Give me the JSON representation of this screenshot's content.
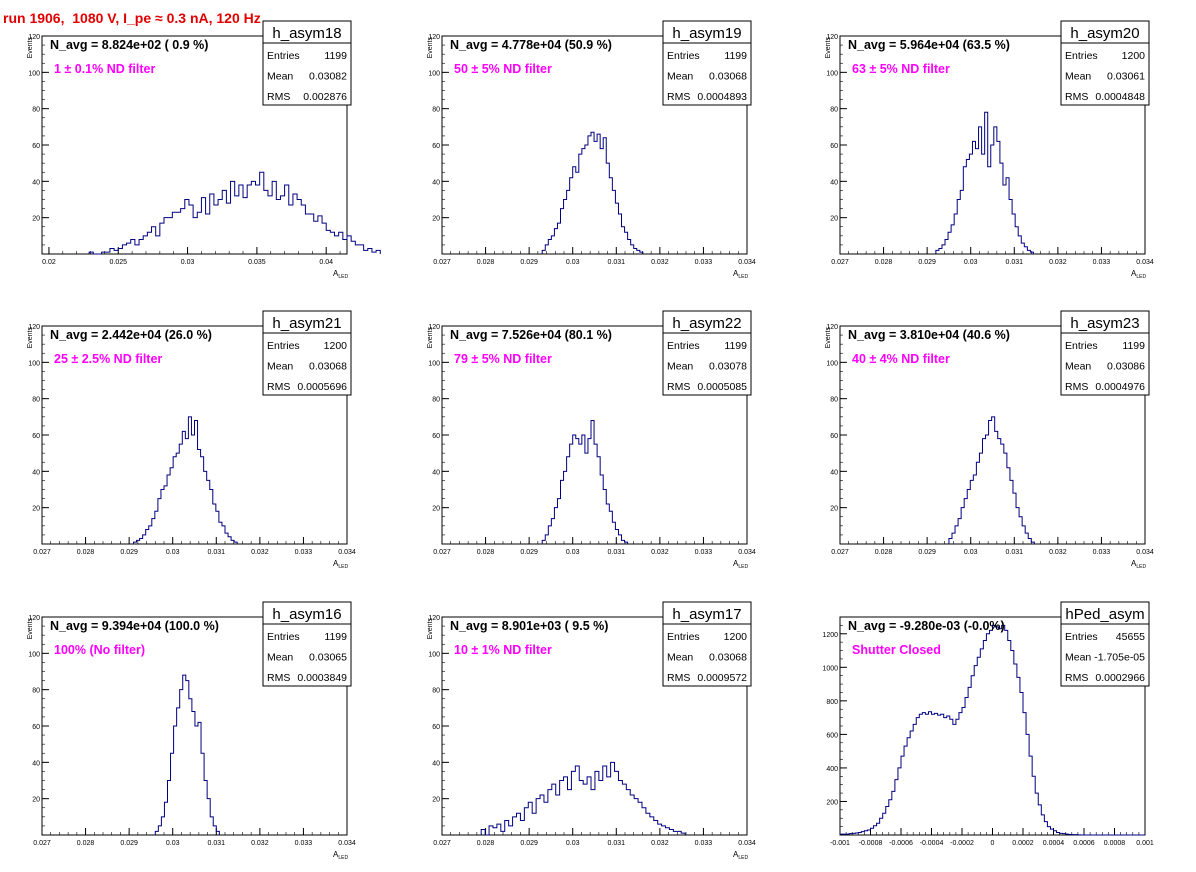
{
  "run_title": "run 1906,  1080 V, I_pe ≈ 0.3 nA, 120 Hz",
  "colors": {
    "title": "#e00000",
    "filter_note": "#ff00ff",
    "histogram_line": "#000080",
    "text": "#000000"
  },
  "stat_labels": {
    "entries": "Entries",
    "mean": "Mean",
    "rms": "RMS"
  },
  "chart_data": [
    {
      "type": "histogram",
      "name": "h_asym18",
      "navg": "N_avg = 8.824e+02 ( 0.9 %)",
      "filter": "1 ± 0.1% ND filter",
      "entries": "1199",
      "mean": "0.03082",
      "rms": "0.002876",
      "ylabel": "Events",
      "xlabel": "A",
      "xlabel_sub": "LED",
      "xlim": [
        0.0195,
        0.0415
      ],
      "ylim": [
        0,
        120
      ],
      "xticks": [
        0.02,
        0.025,
        0.03,
        0.035,
        0.04
      ],
      "xtick_labels": [
        "0.02",
        "0.025",
        "0.03",
        "0.035",
        "0.04"
      ],
      "yticks": [
        20,
        40,
        60,
        80,
        100,
        120
      ],
      "bin_start": 0.0229,
      "bin_width": 0.0003,
      "counts": [
        1,
        0,
        0,
        1,
        1,
        3,
        2,
        3,
        5,
        6,
        8,
        5,
        8,
        10,
        12,
        15,
        10,
        17,
        20,
        20,
        23,
        23,
        25,
        30,
        27,
        20,
        23,
        31,
        22,
        33,
        27,
        30,
        35,
        28,
        40,
        32,
        38,
        31,
        38,
        40,
        38,
        45,
        35,
        32,
        40,
        30,
        32,
        38,
        27,
        33,
        30,
        27,
        22,
        22,
        18,
        21,
        17,
        13,
        12,
        10,
        12,
        8,
        10,
        7,
        5,
        5,
        2,
        3,
        1,
        2
      ]
    },
    {
      "type": "histogram",
      "name": "h_asym19",
      "navg": "N_avg = 4.778e+04 (50.9 %)",
      "filter": "50 ± 5% ND filter",
      "entries": "1199",
      "mean": "0.03068",
      "rms": "0.0004893",
      "ylabel": "Events",
      "xlabel": "A",
      "xlabel_sub": "LED",
      "xlim": [
        0.027,
        0.034
      ],
      "ylim": [
        0,
        120
      ],
      "xticks": [
        0.027,
        0.028,
        0.029,
        0.03,
        0.031,
        0.032,
        0.033,
        0.034
      ],
      "xtick_labels": [
        "0.027",
        "0.028",
        "0.029",
        "0.03",
        "0.031",
        "0.032",
        "0.033",
        "0.034"
      ],
      "yticks": [
        20,
        40,
        60,
        80,
        100,
        120
      ],
      "bin_start": 0.0293,
      "bin_width": 7e-05,
      "counts": [
        2,
        5,
        8,
        10,
        14,
        17,
        25,
        30,
        35,
        42,
        48,
        45,
        55,
        58,
        60,
        65,
        67,
        62,
        66,
        58,
        64,
        50,
        42,
        35,
        28,
        22,
        15,
        12,
        8,
        5,
        3,
        2,
        1
      ]
    },
    {
      "type": "histogram",
      "name": "h_asym20",
      "navg": "N_avg = 5.964e+04 (63.5 %)",
      "filter": "63 ± 5% ND filter",
      "entries": "1200",
      "mean": "0.03061",
      "rms": "0.0004848",
      "ylabel": "Events",
      "xlabel": "A",
      "xlabel_sub": "LED",
      "xlim": [
        0.027,
        0.034
      ],
      "ylim": [
        0,
        120
      ],
      "xticks": [
        0.027,
        0.028,
        0.029,
        0.03,
        0.031,
        0.032,
        0.033,
        0.034
      ],
      "xtick_labels": [
        "0.027",
        "0.028",
        "0.029",
        "0.03",
        "0.031",
        "0.032",
        "0.033",
        "0.034"
      ],
      "yticks": [
        20,
        40,
        60,
        80,
        100,
        120
      ],
      "bin_start": 0.0292,
      "bin_width": 7e-05,
      "counts": [
        2,
        3,
        5,
        8,
        12,
        16,
        22,
        30,
        35,
        48,
        52,
        55,
        62,
        58,
        70,
        55,
        78,
        48,
        60,
        70,
        62,
        50,
        38,
        42,
        30,
        22,
        15,
        10,
        6,
        4,
        2,
        1
      ]
    },
    {
      "type": "histogram",
      "name": "h_asym21",
      "navg": "N_avg = 2.442e+04 (26.0 %)",
      "filter": "25 ± 2.5% ND filter",
      "entries": "1200",
      "mean": "0.03068",
      "rms": "0.0005696",
      "ylabel": "Events",
      "xlabel": "A",
      "xlabel_sub": "LED",
      "xlim": [
        0.027,
        0.034
      ],
      "ylim": [
        0,
        120
      ],
      "xticks": [
        0.027,
        0.028,
        0.029,
        0.03,
        0.031,
        0.032,
        0.033,
        0.034
      ],
      "xtick_labels": [
        "0.027",
        "0.028",
        "0.029",
        "0.03",
        "0.031",
        "0.032",
        "0.033",
        "0.034"
      ],
      "yticks": [
        20,
        40,
        60,
        80,
        100,
        120
      ],
      "bin_start": 0.0291,
      "bin_width": 7e-05,
      "counts": [
        1,
        2,
        3,
        5,
        8,
        10,
        14,
        18,
        25,
        30,
        32,
        38,
        42,
        48,
        50,
        55,
        62,
        58,
        70,
        60,
        68,
        52,
        48,
        40,
        35,
        30,
        22,
        18,
        12,
        10,
        6,
        4,
        2,
        1
      ]
    },
    {
      "type": "histogram",
      "name": "h_asym22",
      "navg": "N_avg = 7.526e+04 (80.1 %)",
      "filter": "79 ± 5% ND filter",
      "entries": "1199",
      "mean": "0.03078",
      "rms": "0.0005085",
      "ylabel": "Events",
      "xlabel": "A",
      "xlabel_sub": "LED",
      "xlim": [
        0.027,
        0.034
      ],
      "ylim": [
        0,
        120
      ],
      "xticks": [
        0.027,
        0.028,
        0.029,
        0.03,
        0.031,
        0.032,
        0.033,
        0.034
      ],
      "xtick_labels": [
        "0.027",
        "0.028",
        "0.029",
        "0.03",
        "0.031",
        "0.032",
        "0.033",
        "0.034"
      ],
      "yticks": [
        20,
        40,
        60,
        80,
        100,
        120
      ],
      "bin_start": 0.0293,
      "bin_width": 7e-05,
      "counts": [
        2,
        5,
        10,
        14,
        20,
        25,
        35,
        40,
        48,
        55,
        60,
        58,
        55,
        60,
        50,
        58,
        68,
        55,
        48,
        38,
        30,
        22,
        18,
        12,
        8,
        5,
        2,
        1
      ]
    },
    {
      "type": "histogram",
      "name": "h_asym23",
      "navg": "N_avg = 3.810e+04 (40.6 %)",
      "filter": "40 ± 4% ND filter",
      "entries": "1199",
      "mean": "0.03086",
      "rms": "0.0004976",
      "ylabel": "Events",
      "xlabel": "A",
      "xlabel_sub": "LED",
      "xlim": [
        0.027,
        0.034
      ],
      "ylim": [
        0,
        120
      ],
      "xticks": [
        0.027,
        0.028,
        0.029,
        0.03,
        0.031,
        0.032,
        0.033,
        0.034
      ],
      "xtick_labels": [
        "0.027",
        "0.028",
        "0.029",
        "0.03",
        "0.031",
        "0.032",
        "0.033",
        "0.034"
      ],
      "yticks": [
        20,
        40,
        60,
        80,
        100,
        120
      ],
      "bin_start": 0.0295,
      "bin_width": 7e-05,
      "counts": [
        3,
        6,
        10,
        14,
        20,
        25,
        30,
        35,
        38,
        45,
        50,
        58,
        60,
        68,
        70,
        62,
        58,
        55,
        50,
        42,
        35,
        28,
        20,
        15,
        10,
        6,
        3,
        1
      ]
    },
    {
      "type": "histogram",
      "name": "h_asym16",
      "navg": "N_avg = 9.394e+04 (100.0 %)",
      "filter": "100% (No filter)",
      "entries": "1199",
      "mean": "0.03065",
      "rms": "0.0003849",
      "ylabel": "Events",
      "xlabel": "A",
      "xlabel_sub": "LED",
      "xlim": [
        0.027,
        0.034
      ],
      "ylim": [
        0,
        120
      ],
      "xticks": [
        0.027,
        0.028,
        0.029,
        0.03,
        0.031,
        0.032,
        0.033,
        0.034
      ],
      "xtick_labels": [
        "0.027",
        "0.028",
        "0.029",
        "0.03",
        "0.031",
        "0.032",
        "0.033",
        "0.034"
      ],
      "yticks": [
        20,
        40,
        60,
        80,
        100,
        120
      ],
      "bin_start": 0.0296,
      "bin_width": 7e-05,
      "counts": [
        2,
        5,
        10,
        18,
        30,
        45,
        60,
        70,
        80,
        88,
        85,
        75,
        68,
        60,
        62,
        45,
        30,
        20,
        10,
        5,
        2
      ]
    },
    {
      "type": "histogram",
      "name": "h_asym17",
      "navg": "N_avg = 8.901e+03 ( 9.5 %)",
      "filter": "10 ± 1% ND filter",
      "entries": "1200",
      "mean": "0.03068",
      "rms": "0.0009572",
      "ylabel": "Events",
      "xlabel": "A",
      "xlabel_sub": "LED",
      "xlim": [
        0.027,
        0.034
      ],
      "ylim": [
        0,
        120
      ],
      "xticks": [
        0.027,
        0.028,
        0.029,
        0.03,
        0.031,
        0.032,
        0.033,
        0.034
      ],
      "xtick_labels": [
        "0.027",
        "0.028",
        "0.029",
        "0.03",
        "0.031",
        "0.032",
        "0.033",
        "0.034"
      ],
      "yticks": [
        20,
        40,
        60,
        80,
        100,
        120
      ],
      "bin_start": 0.0279,
      "bin_width": 9e-05,
      "counts": [
        3,
        0,
        5,
        4,
        6,
        2,
        8,
        5,
        10,
        12,
        8,
        15,
        18,
        12,
        20,
        22,
        18,
        25,
        28,
        22,
        30,
        32,
        25,
        35,
        38,
        30,
        28,
        32,
        25,
        35,
        30,
        38,
        32,
        40,
        35,
        30,
        28,
        25,
        22,
        20,
        18,
        15,
        12,
        10,
        8,
        6,
        5,
        4,
        3,
        2,
        2,
        1
      ]
    },
    {
      "type": "histogram",
      "name": "hPed_asym",
      "navg": "N_avg = -9.280e-03 (-0.0%)",
      "filter": "Shutter Closed",
      "entries": "45655",
      "mean": "-1.705e-05",
      "rms": "0.0002966",
      "ylabel": "",
      "xlabel": "",
      "xlabel_sub": "",
      "xlim": [
        -0.001,
        0.001
      ],
      "ylim": [
        0,
        1300
      ],
      "xticks": [
        -0.001,
        -0.0008,
        -0.0006,
        -0.0004,
        -0.0002,
        0,
        0.0002,
        0.0004,
        0.0006,
        0.0008,
        0.001
      ],
      "xtick_labels": [
        "-0.001",
        "-0.0008",
        "-0.0006",
        "-0.0004",
        "-0.0002",
        "0",
        "0.0002",
        "0.0004",
        "0.0006",
        "0.0008",
        "0.001"
      ],
      "yticks": [
        200,
        400,
        600,
        800,
        1000,
        1200
      ],
      "bin_start": -0.001,
      "bin_width": 2e-05,
      "counts": [
        5,
        5,
        5,
        8,
        10,
        12,
        15,
        20,
        25,
        30,
        40,
        55,
        70,
        100,
        130,
        170,
        210,
        260,
        330,
        400,
        470,
        530,
        580,
        620,
        660,
        700,
        720,
        730,
        720,
        735,
        720,
        725,
        715,
        720,
        700,
        710,
        690,
        660,
        690,
        730,
        760,
        820,
        880,
        950,
        1010,
        1060,
        1110,
        1160,
        1200,
        1220,
        1250,
        1240,
        1230,
        1250,
        1220,
        1160,
        1100,
        1020,
        940,
        850,
        730,
        600,
        470,
        350,
        250,
        180,
        120,
        80,
        50,
        35,
        25,
        15,
        10,
        8,
        5,
        3,
        2,
        2,
        1,
        0,
        0,
        0,
        0,
        0,
        0,
        0,
        0,
        0,
        0,
        0,
        0,
        0,
        0,
        0,
        0,
        0,
        0,
        0,
        0,
        0
      ]
    }
  ]
}
